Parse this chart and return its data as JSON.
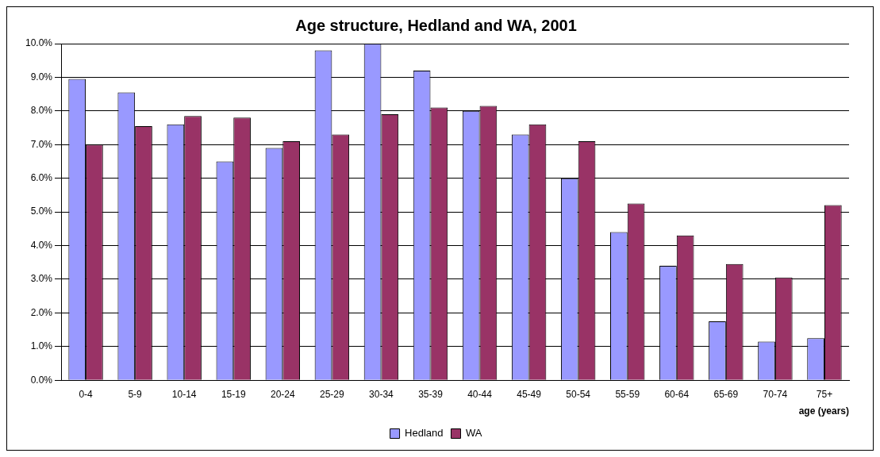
{
  "chart_data": {
    "type": "bar",
    "title": "Age structure, Hedland and WA, 2001",
    "xlabel": "age (years)",
    "categories": [
      "0-4",
      "5-9",
      "10-14",
      "15-19",
      "20-24",
      "25-29",
      "30-34",
      "35-39",
      "40-44",
      "45-49",
      "50-54",
      "55-59",
      "60-64",
      "65-69",
      "70-74",
      "75+"
    ],
    "series": [
      {
        "name": "Hedland",
        "color": "#9999ff",
        "values": [
          8.95,
          8.55,
          7.6,
          6.5,
          6.9,
          9.8,
          10.0,
          9.2,
          8.0,
          7.3,
          6.0,
          4.4,
          3.4,
          1.75,
          1.15,
          1.25
        ]
      },
      {
        "name": "WA",
        "color": "#993366",
        "values": [
          7.0,
          7.55,
          7.85,
          7.8,
          7.1,
          7.3,
          7.9,
          8.1,
          8.15,
          7.6,
          7.1,
          5.25,
          4.3,
          3.45,
          3.05,
          5.2
        ]
      }
    ],
    "ylim": [
      0,
      10
    ],
    "yticks": [
      {
        "value": 0,
        "label": "0.0%"
      },
      {
        "value": 1,
        "label": "1.0%"
      },
      {
        "value": 2,
        "label": "2.0%"
      },
      {
        "value": 3,
        "label": "3.0%"
      },
      {
        "value": 4,
        "label": "4.0%"
      },
      {
        "value": 5,
        "label": "5.0%"
      },
      {
        "value": 6,
        "label": "6.0%"
      },
      {
        "value": 7,
        "label": "7.0%"
      },
      {
        "value": 8,
        "label": "8.0%"
      },
      {
        "value": 9,
        "label": "9.0%"
      },
      {
        "value": 10,
        "label": "10.0%"
      }
    ],
    "grid": "y",
    "legend": "bottom"
  }
}
